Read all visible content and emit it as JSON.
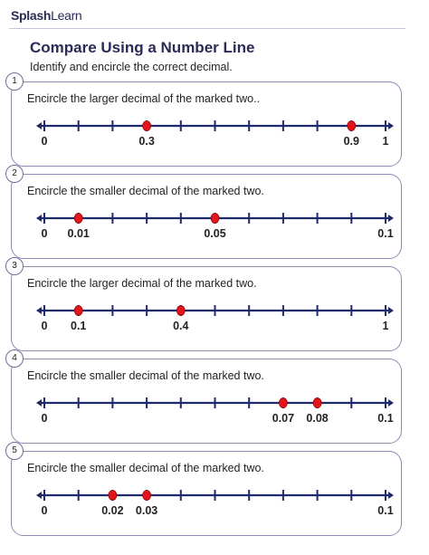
{
  "brand": {
    "bold": "Splash",
    "thin": "Learn"
  },
  "title": "Compare Using a Number Line",
  "subtitle": "Identify and encircle the correct  decimal.",
  "colors": {
    "line": "#1f2a6b",
    "dot": "#e3141b",
    "border": "#8c8cb5",
    "title": "#2b2b55"
  },
  "questions": [
    {
      "number": "1",
      "text": "Encircle the larger decimal of the marked two..",
      "start_label": "0",
      "end_label": "1",
      "ticks": 11,
      "marks": [
        {
          "index": 3,
          "label": "0.3"
        },
        {
          "index": 9,
          "label": "0.9"
        }
      ]
    },
    {
      "number": "2",
      "text": "Encircle the smaller decimal of the marked two.",
      "start_label": "0",
      "end_label": "0.1",
      "ticks": 11,
      "marks": [
        {
          "index": 1,
          "label": "0.01"
        },
        {
          "index": 5,
          "label": "0.05"
        }
      ]
    },
    {
      "number": "3",
      "text": "Encircle the larger decimal of the marked two.",
      "start_label": "0",
      "end_label": "1",
      "ticks": 11,
      "marks": [
        {
          "index": 1,
          "label": "0.1"
        },
        {
          "index": 4,
          "label": "0.4"
        }
      ]
    },
    {
      "number": "4",
      "text": "Encircle the smaller decimal of the marked two.",
      "start_label": "0",
      "end_label": "0.1",
      "ticks": 11,
      "marks": [
        {
          "index": 7,
          "label": "0.07"
        },
        {
          "index": 8,
          "label": "0.08"
        }
      ]
    },
    {
      "number": "5",
      "text": "Encircle the smaller decimal of the marked two.",
      "start_label": "0",
      "end_label": "0.1",
      "ticks": 11,
      "marks": [
        {
          "index": 2,
          "label": "0.02"
        },
        {
          "index": 3,
          "label": "0.03"
        }
      ]
    }
  ]
}
